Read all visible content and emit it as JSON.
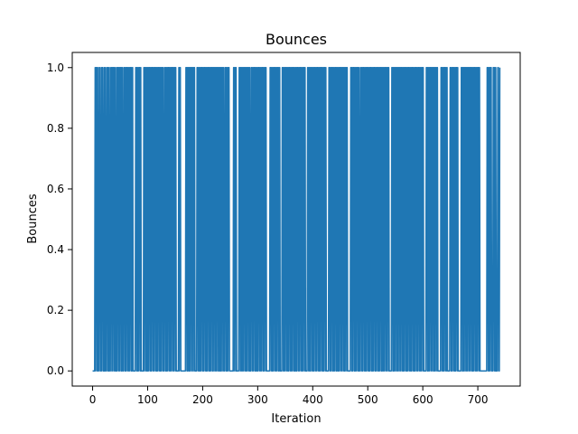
{
  "chart_data": {
    "type": "line",
    "title": "Bounces",
    "xlabel": "Iteration",
    "ylabel": "Bounces",
    "xlim": [
      -37,
      777
    ],
    "ylim": [
      -0.05,
      1.05
    ],
    "xticks": [
      "0",
      "100",
      "200",
      "300",
      "400",
      "500",
      "600",
      "700"
    ],
    "yticks": [
      "0.0",
      "0.2",
      "0.4",
      "0.6",
      "0.8",
      "1.0"
    ],
    "grid": false,
    "series_color": "#1f77b4",
    "series": [
      {
        "x_start": 0,
        "x_end": 740,
        "values": [
          0,
          0,
          0,
          0,
          0,
          1,
          0,
          1,
          1,
          0,
          1,
          0,
          0,
          1,
          1,
          0,
          0,
          1,
          0,
          1,
          1,
          0,
          0,
          1,
          0,
          1,
          0,
          0,
          1,
          1,
          0,
          1,
          0,
          1,
          0,
          0,
          1,
          1,
          0,
          1,
          0,
          1,
          1,
          0,
          1,
          0,
          0,
          1,
          0,
          1,
          1,
          0,
          1,
          0,
          1,
          1,
          0,
          1,
          0,
          1,
          0,
          0,
          1,
          1,
          0,
          1,
          0,
          1,
          1,
          0,
          1,
          0,
          1,
          0,
          1,
          1,
          0,
          1,
          0,
          1,
          0,
          0,
          0,
          0,
          0,
          1,
          1,
          0,
          1,
          0,
          1,
          0,
          1,
          1,
          0,
          1,
          0,
          0,
          0,
          0,
          0,
          1,
          0,
          1,
          1,
          0,
          1,
          0,
          1,
          0,
          1,
          0,
          1,
          1,
          0,
          1,
          0,
          1,
          1,
          0,
          1,
          0,
          1,
          1,
          0,
          1,
          0,
          1,
          0,
          1,
          1,
          0,
          1,
          0,
          1,
          0,
          1,
          1,
          0,
          1,
          0,
          0,
          1,
          1,
          0,
          1,
          0,
          1,
          0,
          1,
          1,
          0,
          1,
          0,
          1,
          0,
          1,
          1,
          0,
          1,
          0,
          1,
          1,
          0,
          1,
          0,
          0,
          0,
          0,
          0,
          1,
          0,
          1,
          1,
          0,
          0,
          0,
          0,
          0,
          0,
          0,
          0,
          0,
          0,
          1,
          1,
          0,
          1,
          0,
          1,
          0,
          1,
          0,
          1,
          1,
          0,
          1,
          0,
          1,
          1,
          0,
          1,
          0,
          0,
          0,
          0,
          1,
          1,
          0,
          1,
          0,
          1,
          0,
          1,
          0,
          1,
          1,
          0,
          1,
          0,
          1,
          1,
          0,
          1,
          0,
          1,
          0,
          1,
          1,
          0,
          1,
          0,
          1,
          0,
          1,
          1,
          0,
          1,
          0,
          1,
          1,
          0,
          1,
          0,
          1,
          0,
          1,
          1,
          0,
          1,
          0,
          1,
          0,
          1,
          0,
          1,
          1,
          0,
          1,
          0,
          0,
          1,
          1,
          0,
          1,
          0,
          1,
          0,
          1,
          1,
          0,
          0,
          0,
          0,
          0,
          0,
          0,
          0,
          1,
          0,
          1,
          1,
          0,
          1,
          0,
          0,
          0,
          0,
          0,
          1,
          1,
          0,
          1,
          0,
          1,
          0,
          1,
          0,
          1,
          1,
          0,
          1,
          0,
          1,
          0,
          1,
          1,
          0,
          1,
          0,
          1,
          0,
          0,
          1,
          1,
          0,
          1,
          0,
          1,
          1,
          0,
          1,
          0,
          1,
          0,
          1,
          0,
          1,
          1,
          0,
          1,
          0,
          1,
          0,
          1,
          1,
          0,
          1,
          0,
          1,
          1,
          0,
          1,
          0,
          0,
          0,
          0,
          0,
          0,
          0,
          1,
          1,
          0,
          1,
          0,
          1,
          0,
          1,
          1,
          0,
          1,
          0,
          1,
          0,
          1,
          1,
          0,
          1,
          0,
          1,
          0,
          0,
          0,
          0,
          1,
          1,
          0,
          1,
          0,
          1,
          0,
          1,
          1,
          0,
          1,
          0,
          1,
          0,
          1,
          1,
          0,
          1,
          0,
          1,
          0,
          1,
          1,
          0,
          1,
          0,
          1,
          0,
          1,
          0,
          1,
          1,
          0,
          1,
          0,
          1,
          1,
          0,
          1,
          0,
          1,
          0,
          1,
          1,
          0,
          1,
          0,
          0,
          0,
          0,
          1,
          1,
          0,
          1,
          0,
          1,
          0,
          1,
          1,
          0,
          1,
          0,
          1,
          0,
          1,
          1,
          0,
          1,
          0,
          1,
          1,
          0,
          1,
          0,
          1,
          0,
          1,
          1,
          0,
          1,
          0,
          1,
          0,
          1,
          1,
          0,
          1,
          0,
          0,
          0,
          0,
          0,
          1,
          1,
          0,
          1,
          0,
          1,
          1,
          0,
          1,
          0,
          1,
          0,
          1,
          1,
          0,
          1,
          0,
          1,
          0,
          1,
          0,
          1,
          1,
          0,
          1,
          0,
          1,
          1,
          0,
          1,
          0,
          1,
          0,
          1,
          1,
          0,
          1,
          0,
          0,
          0,
          0,
          0,
          0,
          1,
          1,
          0,
          1,
          0,
          1,
          1,
          0,
          1,
          0,
          1,
          0,
          1,
          1,
          0,
          1,
          0,
          1,
          0,
          0,
          1,
          1,
          0,
          1,
          0,
          1,
          1,
          0,
          1,
          0,
          1,
          0,
          1,
          1,
          0,
          1,
          0,
          1,
          0,
          1,
          1,
          0,
          1,
          0,
          1,
          0,
          1,
          1,
          0,
          1,
          0,
          1,
          1,
          0,
          1,
          0,
          1,
          0,
          1,
          1,
          0,
          1,
          0,
          1,
          0,
          1,
          0,
          1,
          1,
          0,
          1,
          0,
          1,
          1,
          0,
          1,
          0,
          0,
          0,
          0,
          0,
          1,
          1,
          0,
          1,
          0,
          1,
          0,
          1,
          1,
          0,
          1,
          0,
          1,
          0,
          1,
          1,
          0,
          1,
          0,
          1,
          1,
          0,
          1,
          0,
          1,
          0,
          1,
          1,
          0,
          1,
          0,
          1,
          0,
          1,
          1,
          0,
          1,
          0,
          1,
          0,
          1,
          1,
          0,
          1,
          0,
          1,
          0,
          1,
          1,
          0,
          1,
          0,
          1,
          1,
          0,
          1,
          0,
          1,
          0,
          1,
          1,
          0,
          1,
          0,
          0,
          0,
          0,
          0,
          1,
          1,
          0,
          1,
          0,
          1,
          0,
          1,
          1,
          0,
          1,
          0,
          1,
          1,
          0,
          1,
          0,
          1,
          0,
          1,
          1,
          0,
          1,
          0,
          0,
          0,
          0,
          0,
          0,
          1,
          1,
          0,
          1,
          0,
          1,
          0,
          1,
          1,
          0,
          1,
          0,
          1,
          0,
          0,
          0,
          0,
          0,
          1,
          1,
          0,
          1,
          0,
          1,
          1,
          0,
          1,
          0,
          1,
          0,
          1,
          1,
          0,
          1,
          0,
          0,
          0,
          0,
          0,
          0,
          1,
          1,
          0,
          1,
          0,
          1,
          0,
          1,
          1,
          0,
          1,
          0,
          1,
          0,
          1,
          1,
          0,
          1,
          0,
          1,
          1,
          0,
          1,
          0,
          1,
          0,
          1,
          1,
          0,
          1,
          0,
          1,
          0,
          1,
          1,
          0,
          1,
          0,
          0,
          0,
          0,
          0,
          0,
          0,
          0,
          0,
          0,
          0,
          0,
          0,
          0,
          1,
          1,
          0,
          1,
          0,
          1,
          0,
          1,
          1,
          0,
          0,
          0,
          1,
          1,
          0,
          1,
          0,
          1,
          0,
          0,
          0,
          1,
          1,
          0,
          0,
          1
        ]
      }
    ]
  }
}
